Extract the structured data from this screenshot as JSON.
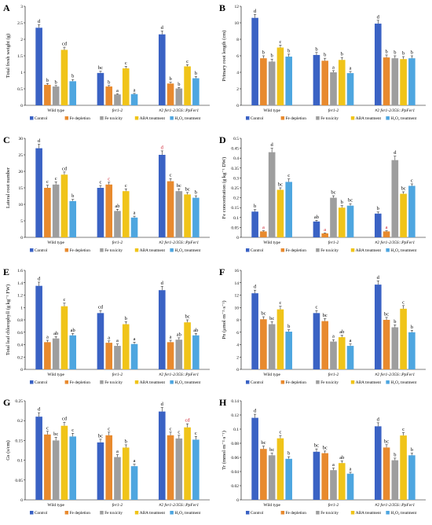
{
  "figure": {
    "groups": [
      "Wild type",
      "fer1-2",
      "#2 fer1-2/35S::PpFer1"
    ],
    "legend": [
      "Control",
      "Fe depletion",
      "Fe toxicity",
      "ABA treatment",
      "H₂O₂ treatment"
    ],
    "colors": [
      "#3a62c4",
      "#e88a2e",
      "#9e9e9e",
      "#f0c419",
      "#4ea6e0"
    ],
    "panel_letter_color": "#000000"
  },
  "chart_data": [
    {
      "panel": "A",
      "type": "bar",
      "ylabel": "Total fresh weight (g)",
      "ylim": [
        0,
        3
      ],
      "yticks": [
        "0",
        "0.5",
        "1",
        "1.5",
        "2",
        "2.5",
        "3"
      ],
      "series_values": [
        [
          2.35,
          0.62,
          0.57,
          1.68,
          0.73
        ],
        [
          0.98,
          0.57,
          0.33,
          1.12,
          0.34
        ],
        [
          2.15,
          0.66,
          0.51,
          1.18,
          0.82
        ]
      ],
      "errors": [
        [
          0.09,
          0.04,
          0.03,
          0.08,
          0.05
        ],
        [
          0.05,
          0.03,
          0.02,
          0.06,
          0.02
        ],
        [
          0.1,
          0.04,
          0.03,
          0.05,
          0.05
        ]
      ],
      "labels": [
        [
          "d",
          "b",
          "b",
          "cd",
          "b"
        ],
        [
          "bc",
          "b",
          "a",
          "c",
          "a"
        ],
        [
          "d",
          "b",
          "b",
          "c",
          "b"
        ]
      ]
    },
    {
      "panel": "B",
      "type": "bar",
      "ylabel": "Primary root length (cm)",
      "ylim": [
        0,
        12
      ],
      "yticks": [
        "0",
        "2",
        "4",
        "6",
        "8",
        "10",
        "12"
      ],
      "series_values": [
        [
          10.6,
          5.7,
          5.3,
          7.0,
          5.9
        ],
        [
          6.1,
          5.4,
          4.0,
          5.5,
          3.9
        ],
        [
          9.9,
          5.8,
          5.7,
          5.6,
          5.7
        ]
      ],
      "errors": [
        [
          0.4,
          0.3,
          0.3,
          0.3,
          0.3
        ],
        [
          0.3,
          0.3,
          0.2,
          0.3,
          0.2
        ],
        [
          0.4,
          0.3,
          0.3,
          0.3,
          0.3
        ]
      ],
      "labels": [
        [
          "d",
          "b",
          "b",
          "c",
          "b"
        ],
        [
          "b",
          "b",
          "a",
          "b",
          "a"
        ],
        [
          "d",
          "b",
          "b",
          "b",
          "b"
        ]
      ]
    },
    {
      "panel": "C",
      "type": "bar",
      "ylabel": "Lateral root number",
      "ylim": [
        0,
        30
      ],
      "yticks": [
        "0",
        "5",
        "10",
        "15",
        "20",
        "25",
        "30"
      ],
      "series_values": [
        [
          27,
          15,
          16,
          19,
          11
        ],
        [
          15,
          16,
          8,
          14,
          6
        ],
        [
          25,
          17,
          14,
          13,
          12
        ]
      ],
      "errors": [
        [
          1.2,
          0.8,
          0.8,
          0.8,
          0.5
        ],
        [
          0.7,
          0.7,
          0.5,
          0.7,
          0.4
        ],
        [
          1.2,
          0.8,
          0.7,
          0.6,
          0.6
        ]
      ],
      "labels": [
        [
          "d",
          "c",
          "c",
          "cd",
          "b"
        ],
        [
          "c",
          "c",
          "ab",
          "c",
          "a"
        ],
        [
          "d",
          "c",
          "bc",
          "bc",
          "b"
        ]
      ],
      "label_colors": [
        [
          "#000000",
          "#000000",
          "#000000",
          "#000000",
          "#000000"
        ],
        [
          "#000000",
          "#d02030",
          "#000000",
          "#000000",
          "#000000"
        ],
        [
          "#d02030",
          "#000000",
          "#000000",
          "#000000",
          "#000000"
        ]
      ]
    },
    {
      "panel": "D",
      "type": "bar",
      "ylabel": "Fe concentration (g kg⁻¹ DW)",
      "ylim": [
        0,
        0.5
      ],
      "yticks": [
        "0",
        "0.05",
        "0.1",
        "0.15",
        "0.2",
        "0.25",
        "0.3",
        "0.35",
        "0.4",
        "0.45",
        "0.5"
      ],
      "series_values": [
        [
          0.13,
          0.03,
          0.43,
          0.24,
          0.28
        ],
        [
          0.08,
          0.02,
          0.2,
          0.15,
          0.16
        ],
        [
          0.12,
          0.03,
          0.39,
          0.22,
          0.26
        ]
      ],
      "errors": [
        [
          0.01,
          0.003,
          0.02,
          0.01,
          0.015
        ],
        [
          0.006,
          0.002,
          0.01,
          0.01,
          0.01
        ],
        [
          0.008,
          0.003,
          0.02,
          0.01,
          0.01
        ]
      ],
      "labels": [
        [
          "b",
          "a",
          "d",
          "bc",
          "c"
        ],
        [
          "ab",
          "a",
          "bc",
          "b",
          "bc"
        ],
        [
          "b",
          "a",
          "d",
          "bc",
          "c"
        ]
      ],
      "label_colors": [
        [
          "#000000",
          "#d02030",
          "#000000",
          "#000000",
          "#000000"
        ],
        [
          "#000000",
          "#d02030",
          "#000000",
          "#000000",
          "#000000"
        ],
        [
          "#000000",
          "#d02030",
          "#000000",
          "#000000",
          "#000000"
        ]
      ]
    },
    {
      "panel": "E",
      "type": "bar",
      "ylabel": "Total leaf chlorophyll (g kg⁻¹ FW)",
      "ylim": [
        0,
        1.6
      ],
      "yticks": [
        "0",
        "0.2",
        "0.4",
        "0.6",
        "0.8",
        "1",
        "1.2",
        "1.4",
        "1.6"
      ],
      "series_values": [
        [
          1.35,
          0.44,
          0.5,
          1.02,
          0.55
        ],
        [
          0.91,
          0.43,
          0.38,
          0.73,
          0.41
        ],
        [
          1.28,
          0.44,
          0.48,
          0.76,
          0.55
        ]
      ],
      "errors": [
        [
          0.06,
          0.03,
          0.03,
          0.05,
          0.03
        ],
        [
          0.04,
          0.03,
          0.03,
          0.04,
          0.03
        ],
        [
          0.06,
          0.03,
          0.03,
          0.04,
          0.03
        ]
      ],
      "labels": [
        [
          "d",
          "a",
          "ab",
          "c",
          "ab"
        ],
        [
          "cd",
          "a",
          "a",
          "b",
          "a"
        ],
        [
          "d",
          "a",
          "ab",
          "bc",
          "ab"
        ]
      ]
    },
    {
      "panel": "F",
      "type": "bar",
      "ylabel": "Pn (μmol·m⁻²·s⁻¹)",
      "ylim": [
        0,
        16
      ],
      "yticks": [
        "0",
        "2",
        "4",
        "6",
        "8",
        "10",
        "12",
        "14",
        "16"
      ],
      "series_values": [
        [
          12.3,
          8.1,
          7.3,
          9.7,
          6.1
        ],
        [
          9.1,
          7.8,
          4.5,
          5.2,
          3.8
        ],
        [
          13.7,
          8.0,
          6.8,
          9.8,
          6.0
        ]
      ],
      "errors": [
        [
          0.5,
          0.4,
          0.4,
          0.5,
          0.3
        ],
        [
          0.4,
          0.4,
          0.3,
          0.3,
          0.3
        ],
        [
          0.6,
          0.4,
          0.4,
          0.5,
          0.3
        ]
      ],
      "labels": [
        [
          "d",
          "bc",
          "bc",
          "c",
          "b"
        ],
        [
          "c",
          "bc",
          "a",
          "ab",
          "a"
        ],
        [
          "d",
          "bc",
          "b",
          "c",
          "b"
        ]
      ]
    },
    {
      "panel": "G",
      "type": "bar",
      "ylabel": "Gs (s/cm)",
      "ylim": [
        0,
        0.25
      ],
      "yticks": [
        "0",
        "0.05",
        "0.1",
        "0.15",
        "0.2",
        "0.25"
      ],
      "series_values": [
        [
          0.21,
          0.165,
          0.15,
          0.187,
          0.16
        ],
        [
          0.145,
          0.163,
          0.108,
          0.132,
          0.085
        ],
        [
          0.223,
          0.163,
          0.155,
          0.183,
          0.152
        ]
      ],
      "errors": [
        [
          0.01,
          0.008,
          0.008,
          0.009,
          0.008
        ],
        [
          0.008,
          0.008,
          0.006,
          0.007,
          0.005
        ],
        [
          0.01,
          0.008,
          0.008,
          0.009,
          0.008
        ]
      ],
      "labels": [
        [
          "d",
          "c",
          "bc",
          "cd",
          "c"
        ],
        [
          "bc",
          "c",
          "a",
          "b",
          "a"
        ],
        [
          "d",
          "c",
          "c",
          "cd",
          "c"
        ]
      ],
      "label_colors": [
        [
          "#000000",
          "#000000",
          "#000000",
          "#000000",
          "#000000"
        ],
        [
          "#000000",
          "#000000",
          "#000000",
          "#000000",
          "#000000"
        ],
        [
          "#000000",
          "#000000",
          "#000000",
          "#d02030",
          "#000000"
        ]
      ]
    },
    {
      "panel": "H",
      "type": "bar",
      "ylabel": "Tr (mmol·m⁻²·s⁻¹)",
      "ylim": [
        0,
        0.14
      ],
      "yticks": [
        "0",
        "0.02",
        "0.04",
        "0.06",
        "0.08",
        "0.1",
        "0.12",
        "0.14"
      ],
      "series_values": [
        [
          0.116,
          0.072,
          0.063,
          0.087,
          0.058
        ],
        [
          0.068,
          0.066,
          0.042,
          0.052,
          0.037
        ],
        [
          0.104,
          0.074,
          0.056,
          0.091,
          0.063
        ]
      ],
      "errors": [
        [
          0.005,
          0.004,
          0.003,
          0.004,
          0.003
        ],
        [
          0.004,
          0.003,
          0.003,
          0.003,
          0.002
        ],
        [
          0.005,
          0.004,
          0.003,
          0.004,
          0.003
        ]
      ],
      "labels": [
        [
          "d",
          "bc",
          "bc",
          "c",
          "b"
        ],
        [
          "bc",
          "bc",
          "a",
          "ab",
          "a"
        ],
        [
          "d",
          "bc",
          "b",
          "c",
          "b"
        ]
      ]
    }
  ]
}
